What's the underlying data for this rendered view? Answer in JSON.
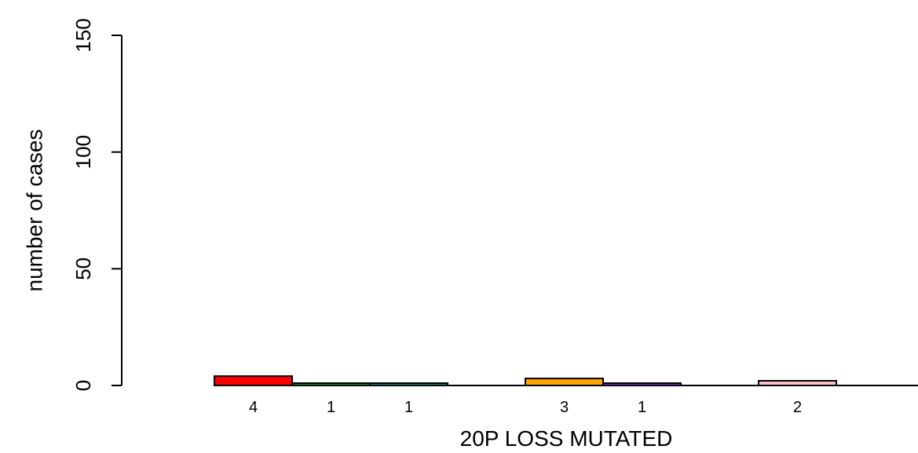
{
  "chart_data": {
    "type": "bar",
    "title": "",
    "xlabel": "20P LOSS MUTATED",
    "ylabel": "number of cases",
    "ylim": [
      0,
      150
    ],
    "yticks": [
      0,
      50,
      100,
      150
    ],
    "grid": false,
    "legend": "none",
    "groups": [
      {
        "bars": [
          {
            "value": 4,
            "label": "4",
            "color": "#ff0000"
          },
          {
            "value": 1,
            "label": "1",
            "color": "#00b000"
          },
          {
            "value": 1,
            "label": "1",
            "color": "#00a0a0"
          }
        ]
      },
      {
        "bars": [
          {
            "value": 3,
            "label": "3",
            "color": "#ffa500"
          },
          {
            "value": 1,
            "label": "1",
            "color": "#a020f0"
          }
        ]
      },
      {
        "bars": [
          {
            "value": 2,
            "label": "2",
            "color": "#ffc0cb"
          }
        ]
      }
    ]
  }
}
